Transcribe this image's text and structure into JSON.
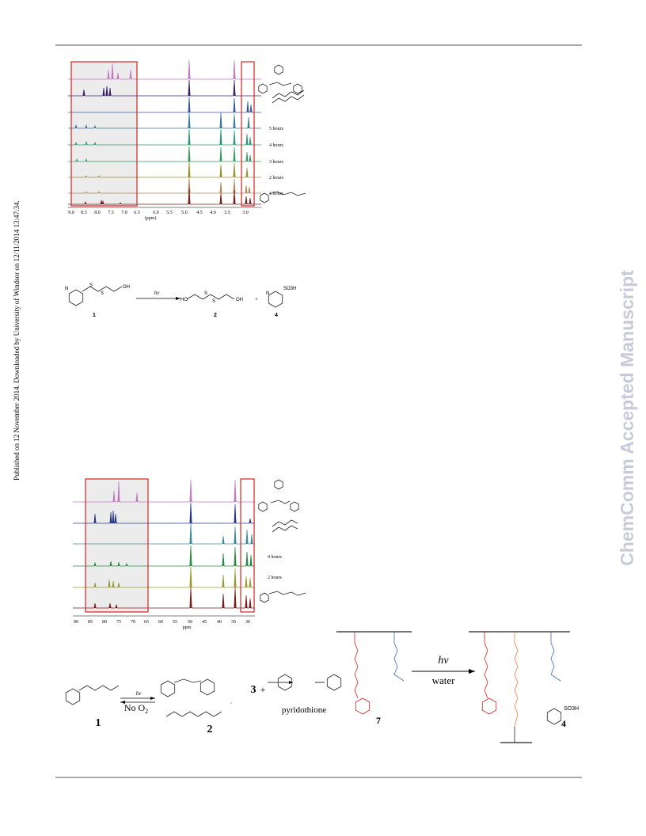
{
  "side_note": "Published on 12 November 2014. Downloaded by University of Windsor on 12/11/2014 13:47:34.",
  "watermark": "ChemComm Accepted Manuscript",
  "figure_1": {
    "time_labels": [
      "5 hours",
      "4 hours",
      "3 hours",
      "2 hours",
      "1 hours"
    ],
    "axis_ticks": [
      "9.0",
      "8.5",
      "8.0",
      "7.5",
      "7.0",
      "6.5",
      "6.0",
      "5.5",
      "5.0",
      "4.5",
      "4.0",
      "3.5",
      "3.0"
    ],
    "axis_label": "(ppm)"
  },
  "scheme_1": {
    "arrow_label": "hv",
    "compound_numbers": [
      "1",
      "2",
      "4"
    ],
    "plus": "+",
    "atom_labels": [
      "N",
      "S",
      "S",
      "OH",
      "HO",
      "S",
      "S",
      "OH",
      "N",
      "SO3H"
    ]
  },
  "figure_2": {
    "time_labels": [
      "4 hours",
      "2 hours"
    ],
    "axis_ticks": [
      "90",
      "85",
      "80",
      "75",
      "70",
      "65",
      "60",
      "55",
      "50",
      "45",
      "40",
      "35",
      "30"
    ],
    "axis_label": "ppm"
  },
  "scheme_2": {
    "arrow_label_top": "hv",
    "arrow_label_bottom": "No O",
    "subscript": "2",
    "compound_numbers": [
      "1",
      "3",
      "2"
    ],
    "plus": "+",
    "product": "pyridothione"
  },
  "scheme_3": {
    "compound_numbers": [
      "7",
      "4"
    ],
    "arrow_label": "hv",
    "solvent": "water",
    "product_label": "SO3H"
  }
}
